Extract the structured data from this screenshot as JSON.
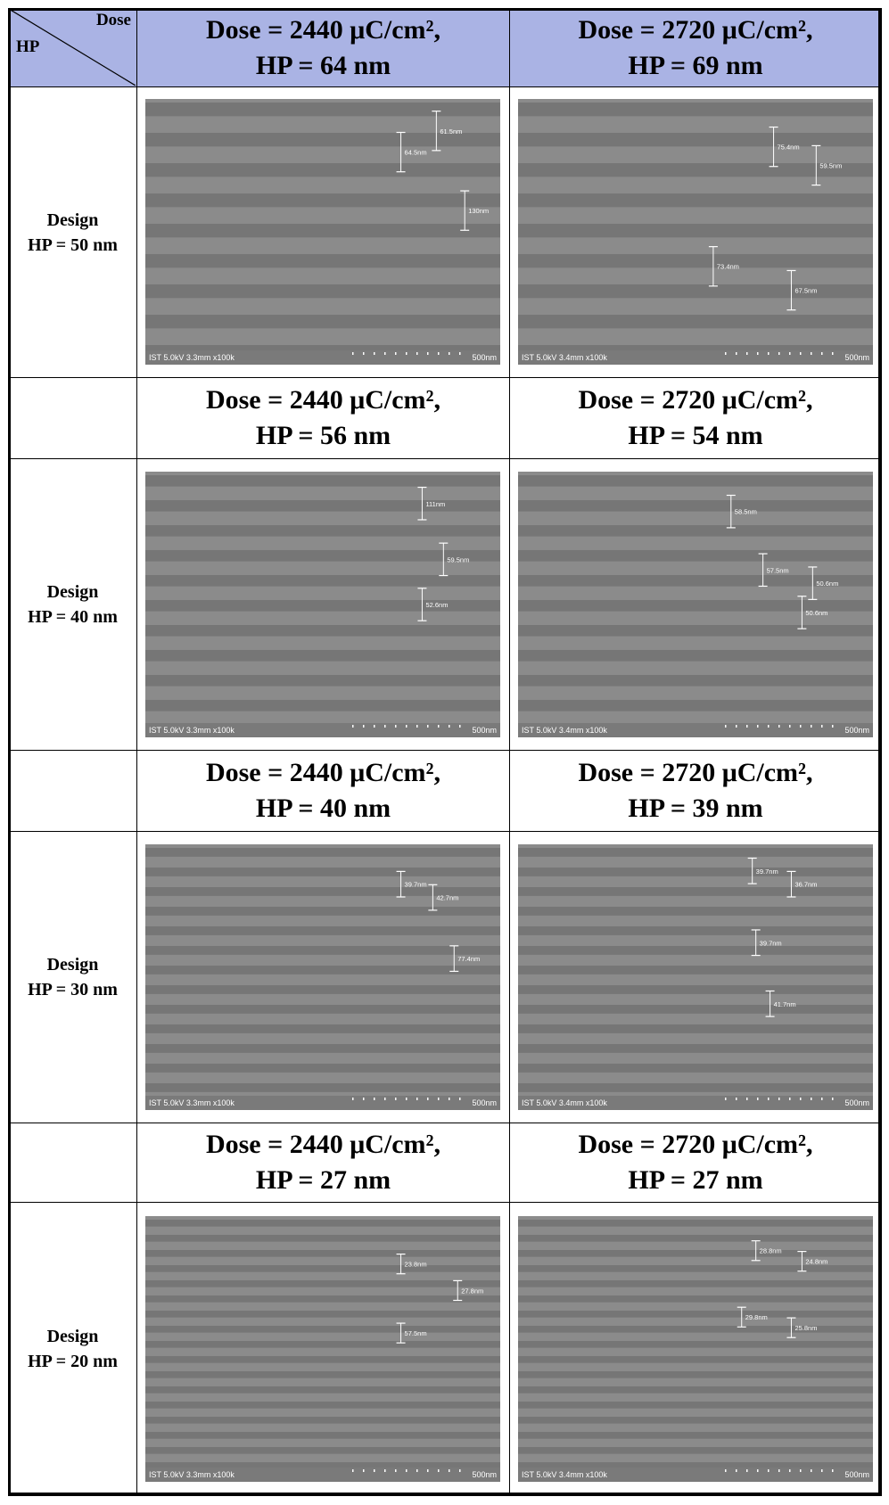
{
  "corner": {
    "column_header": "Dose",
    "row_header": "HP"
  },
  "rows": [
    {
      "design": "Design",
      "hp": "HP = 50 nm",
      "cells": [
        {
          "dose": "Dose = 2440 μC/cm²,",
          "hp": "HP = 64 nm",
          "image": {
            "info": "IST 5.0kV 3.3mm x100k",
            "scale": "500nm",
            "measurements": [
              "61.5nm",
              "64.5nm",
              "130nm"
            ]
          }
        },
        {
          "dose": "Dose = 2720 μC/cm²,",
          "hp": "HP = 69 nm",
          "image": {
            "info": "IST 5.0kV 3.4mm x100k",
            "scale": "500nm",
            "measurements": [
              "75.4nm",
              "59.5nm",
              "73.4nm",
              "67.5nm"
            ]
          }
        }
      ]
    },
    {
      "design": "Design",
      "hp": "HP = 40 nm",
      "cells": [
        {
          "dose": "Dose = 2440 μC/cm²,",
          "hp": "HP = 56 nm",
          "image": {
            "info": "IST 5.0kV 3.3mm x100k",
            "scale": "500nm",
            "measurements": [
              "111nm",
              "59.5nm",
              "52.6nm"
            ]
          }
        },
        {
          "dose": "Dose = 2720 μC/cm²,",
          "hp": "HP = 54 nm",
          "image": {
            "info": "IST 5.0kV 3.4mm x100k",
            "scale": "500nm",
            "measurements": [
              "58.5nm",
              "57.5nm",
              "50.6nm",
              "50.6nm"
            ]
          }
        }
      ]
    },
    {
      "design": "Design",
      "hp": "HP = 30 nm",
      "cells": [
        {
          "dose": "Dose = 2440 μC/cm²,",
          "hp": "HP = 40 nm",
          "image": {
            "info": "IST 5.0kV 3.3mm x100k",
            "scale": "500nm",
            "measurements": [
              "39.7nm",
              "42.7nm",
              "77.4nm"
            ]
          }
        },
        {
          "dose": "Dose = 2720 μC/cm²,",
          "hp": "HP = 39 nm",
          "image": {
            "info": "IST 5.0kV 3.4mm x100k",
            "scale": "500nm",
            "measurements": [
              "39.7nm",
              "36.7nm",
              "39.7nm",
              "41.7nm"
            ]
          }
        }
      ]
    },
    {
      "design": "Design",
      "hp": "HP = 20 nm",
      "cells": [
        {
          "dose": "Dose = 2440 μC/cm²,",
          "hp": "HP = 27 nm",
          "image": {
            "info": "IST 5.0kV 3.3mm x100k",
            "scale": "500nm",
            "measurements": [
              "23.8nm",
              "27.8nm",
              "57.5nm"
            ]
          }
        },
        {
          "dose": "Dose = 2720 μC/cm²,",
          "hp": "HP = 27 nm",
          "image": {
            "info": "IST 5.0kV 3.4mm x100k",
            "scale": "500nm",
            "measurements": [
              "28.8nm",
              "24.8nm",
              "29.8nm",
              "25.8nm"
            ]
          }
        }
      ]
    }
  ]
}
